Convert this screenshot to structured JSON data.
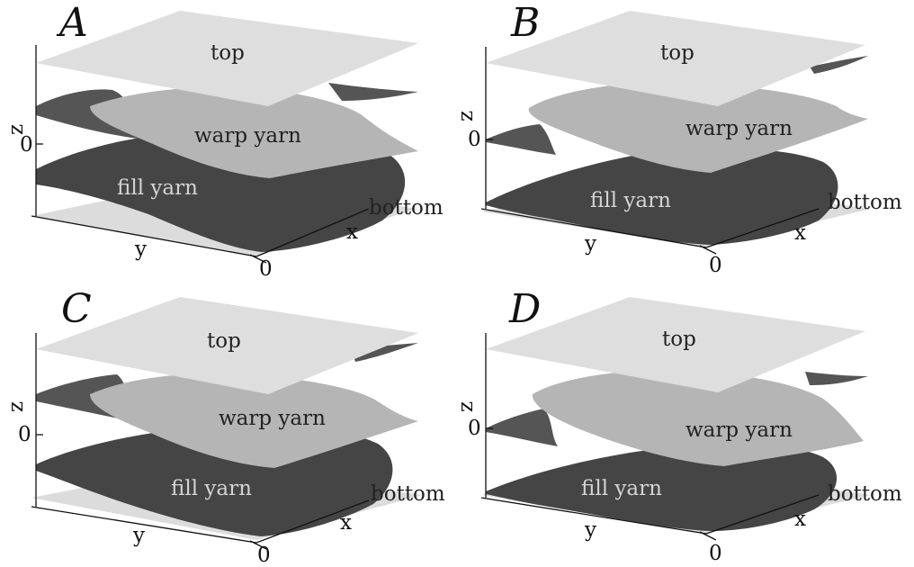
{
  "panels": [
    {
      "id": "A",
      "letter": "A",
      "top": "top",
      "warp": "warp yarn",
      "fill": "fill yarn",
      "bottom": "bottom",
      "z": "z",
      "zero_z": "0",
      "y": "y",
      "x": "x",
      "zero_x": "0"
    },
    {
      "id": "B",
      "letter": "B",
      "top": "top",
      "warp": "warp yarn",
      "fill": "fill yarn",
      "bottom": "bottom",
      "z": "z",
      "zero_z": "0",
      "y": "y",
      "x": "x",
      "zero_x": "0"
    },
    {
      "id": "C",
      "letter": "C",
      "top": "top",
      "warp": "warp yarn",
      "fill": "fill yarn",
      "bottom": "bottom",
      "z": "z",
      "zero_z": "0",
      "y": "y",
      "x": "x",
      "zero_x": "0"
    },
    {
      "id": "D",
      "letter": "D",
      "top": "top",
      "warp": "warp yarn",
      "fill": "fill yarn",
      "bottom": "bottom",
      "z": "z",
      "zero_z": "0",
      "y": "y",
      "x": "x",
      "zero_x": "0"
    }
  ],
  "colors": {
    "top_sheet": "#dedede",
    "bottom_sheet": "#dcdcdc",
    "warp_yarn": "#b5b5b5",
    "warp_yarn_dark": "#555555",
    "fill_yarn": "#454545",
    "background": "#ffffff"
  }
}
